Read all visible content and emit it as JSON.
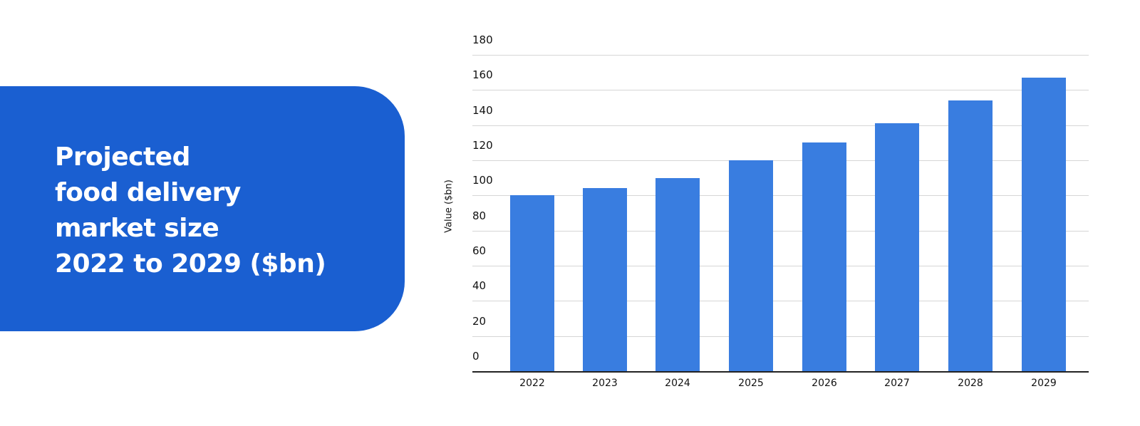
{
  "title": {
    "lines": [
      "Projected",
      "food delivery",
      "market size",
      "2022 to 2029 ($bn)"
    ]
  },
  "colors": {
    "panel": "#1a5fd1",
    "bar": "#397de0"
  },
  "chart_data": {
    "type": "bar",
    "title": "Projected food delivery market size 2022 to 2029 ($bn)",
    "xlabel": "",
    "ylabel": "Value ($bn)",
    "categories": [
      "2022",
      "2023",
      "2024",
      "2025",
      "2026",
      "2027",
      "2028",
      "2029"
    ],
    "values": [
      100,
      104,
      110,
      120,
      130,
      141,
      154,
      167
    ],
    "ylim": [
      0,
      180
    ],
    "yticks": [
      "0",
      "20",
      "40",
      "60",
      "80",
      "100",
      "120",
      "140",
      "160",
      "180"
    ],
    "grid": true,
    "legend": null
  }
}
